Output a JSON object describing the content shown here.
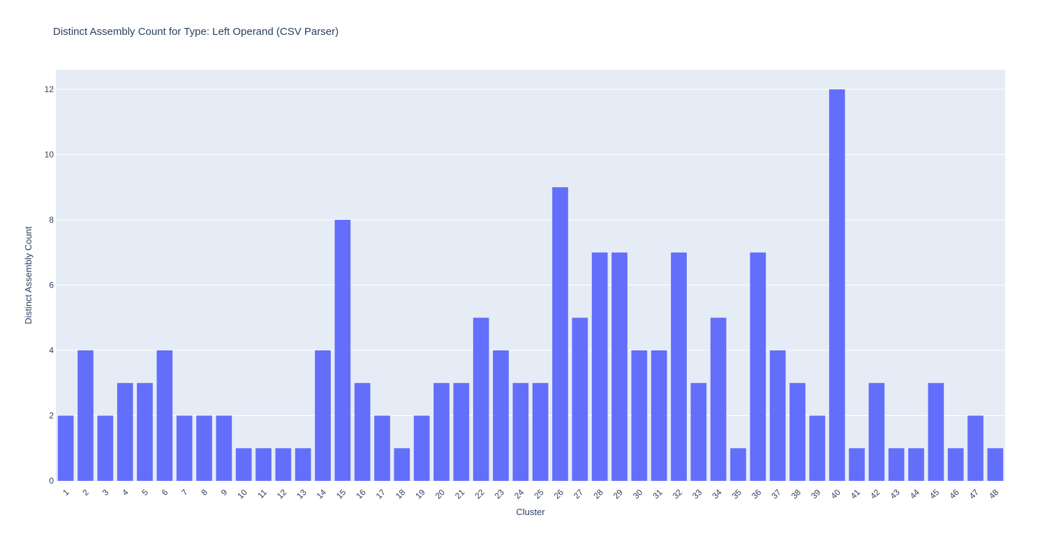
{
  "chart_data": {
    "type": "bar",
    "title": "Distinct Assembly Count for Type: Left Operand (CSV Parser)",
    "xlabel": "Cluster",
    "ylabel": "Distinct Assembly Count",
    "categories": [
      "1",
      "2",
      "3",
      "4",
      "5",
      "6",
      "7",
      "8",
      "9",
      "10",
      "11",
      "12",
      "13",
      "14",
      "15",
      "16",
      "17",
      "18",
      "19",
      "20",
      "21",
      "22",
      "23",
      "24",
      "25",
      "26",
      "27",
      "28",
      "29",
      "30",
      "31",
      "32",
      "33",
      "34",
      "35",
      "36",
      "37",
      "38",
      "39",
      "40",
      "41",
      "42",
      "43",
      "44",
      "45",
      "46",
      "47",
      "48"
    ],
    "values": [
      2,
      4,
      2,
      3,
      3,
      4,
      2,
      2,
      2,
      1,
      1,
      1,
      1,
      4,
      8,
      3,
      2,
      1,
      2,
      3,
      3,
      5,
      4,
      3,
      3,
      9,
      5,
      7,
      7,
      4,
      4,
      7,
      3,
      5,
      1,
      7,
      4,
      3,
      2,
      12,
      1,
      3,
      1,
      1,
      3,
      1,
      2,
      1
    ],
    "ylim": [
      0,
      12.6
    ],
    "yticks": [
      0,
      2,
      4,
      6,
      8,
      10,
      12
    ],
    "grid": true,
    "colors": {
      "bar": "#636efa",
      "plot_bg": "#e5ecf6",
      "grid": "#ffffff",
      "text": "#2a3f5f"
    }
  }
}
